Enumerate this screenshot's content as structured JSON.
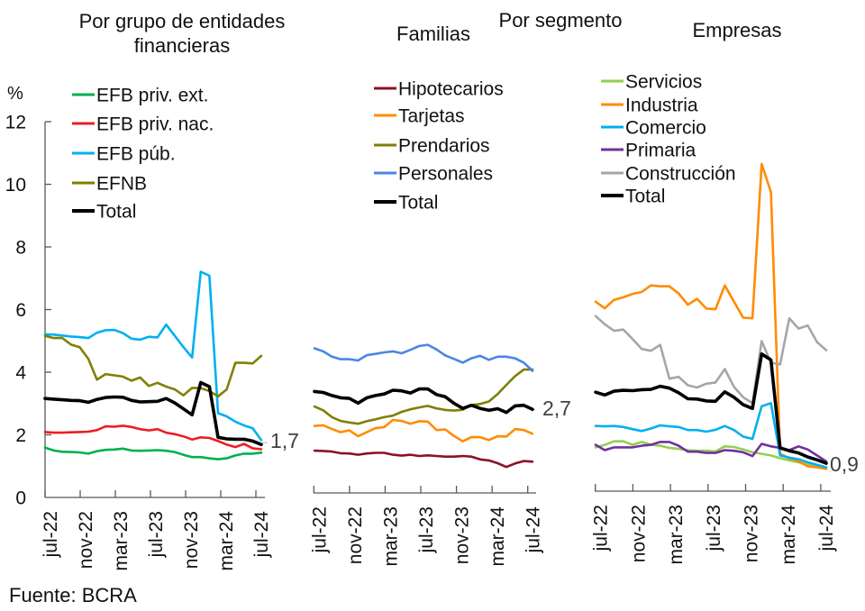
{
  "header": {
    "segment_title": "Por segmento"
  },
  "source": "Fuente: BCRA",
  "chart_data": [
    {
      "type": "line",
      "title": "Por grupo de entidades financieras",
      "title_lines": [
        "Por grupo de entidades",
        "financieras"
      ],
      "xlabel": "",
      "ylabel": "%",
      "ylim": [
        0,
        12
      ],
      "y_ticks": [
        "0",
        "2",
        "4",
        "6",
        "8",
        "10",
        "12"
      ],
      "grid": false,
      "legend_position": "top-left",
      "x_tick_labels": [
        "jul-22",
        "nov-22",
        "mar-23",
        "jul-23",
        "nov-23",
        "mar-24",
        "jul-24"
      ],
      "end_label": "1,7",
      "series": [
        {
          "name": "EFB priv. ext.",
          "color": "#00b050",
          "values": [
            1.59,
            1.5,
            1.46,
            1.45,
            1.44,
            1.4,
            1.48,
            1.52,
            1.53,
            1.56,
            1.5,
            1.49,
            1.5,
            1.51,
            1.49,
            1.45,
            1.36,
            1.29,
            1.29,
            1.25,
            1.22,
            1.25,
            1.34,
            1.4,
            1.4,
            1.43
          ]
        },
        {
          "name": "EFB priv. nac.",
          "color": "#ee1c25",
          "values": [
            2.09,
            2.07,
            2.07,
            2.08,
            2.09,
            2.1,
            2.15,
            2.27,
            2.26,
            2.29,
            2.25,
            2.18,
            2.14,
            2.18,
            2.07,
            2.02,
            1.95,
            1.85,
            1.92,
            1.9,
            1.8,
            1.69,
            1.61,
            1.71,
            1.57,
            1.54
          ]
        },
        {
          "name": "EFB púb.",
          "color": "#00b0f0",
          "values": [
            5.21,
            5.2,
            5.17,
            5.14,
            5.12,
            5.09,
            5.26,
            5.34,
            5.35,
            5.25,
            5.07,
            5.04,
            5.13,
            5.11,
            5.52,
            5.16,
            4.8,
            4.47,
            7.21,
            7.08,
            2.69,
            2.59,
            2.42,
            2.3,
            2.21,
            1.83
          ]
        },
        {
          "name": "EFNB",
          "color": "#808000",
          "values": [
            5.16,
            5.09,
            5.09,
            4.88,
            4.8,
            4.43,
            3.76,
            3.94,
            3.9,
            3.86,
            3.73,
            3.83,
            3.56,
            3.66,
            3.54,
            3.45,
            3.26,
            3.5,
            3.49,
            3.4,
            3.23,
            3.45,
            4.3,
            4.3,
            4.28,
            4.52
          ]
        },
        {
          "name": "Total",
          "color": "#000000",
          "values": [
            3.16,
            3.14,
            3.12,
            3.1,
            3.09,
            3.04,
            3.13,
            3.19,
            3.21,
            3.2,
            3.1,
            3.05,
            3.06,
            3.07,
            3.16,
            3.02,
            2.83,
            2.64,
            3.67,
            3.54,
            1.92,
            1.87,
            1.86,
            1.86,
            1.8,
            1.69
          ]
        }
      ]
    },
    {
      "type": "line",
      "title": "Familias",
      "xlabel": "",
      "ylabel": "%",
      "ylim": [
        0,
        12
      ],
      "grid": false,
      "legend_position": "top",
      "x_tick_labels": [
        "jul-22",
        "nov-22",
        "mar-23",
        "jul-23",
        "nov-23",
        "mar-24",
        "jul-24"
      ],
      "end_label": "2,7",
      "series": [
        {
          "name": "Hipotecarios",
          "color": "#8b1028",
          "values": [
            1.35,
            1.34,
            1.32,
            1.27,
            1.26,
            1.22,
            1.26,
            1.28,
            1.28,
            1.22,
            1.19,
            1.22,
            1.18,
            1.2,
            1.18,
            1.16,
            1.16,
            1.18,
            1.16,
            1.07,
            1.04,
            0.95,
            0.83,
            0.94,
            1.02,
            1.0
          ]
        },
        {
          "name": "Tarjetas",
          "color": "#ff8c00",
          "values": [
            2.14,
            2.16,
            2.04,
            1.94,
            2.0,
            1.81,
            1.94,
            2.07,
            2.1,
            2.33,
            2.3,
            2.21,
            2.29,
            2.28,
            2.01,
            2.03,
            1.82,
            1.65,
            1.78,
            1.78,
            1.69,
            1.81,
            1.8,
            2.04,
            2.01,
            1.89
          ]
        },
        {
          "name": "Prendarios",
          "color": "#808000",
          "values": [
            2.76,
            2.64,
            2.42,
            2.3,
            2.25,
            2.21,
            2.29,
            2.35,
            2.42,
            2.47,
            2.59,
            2.67,
            2.73,
            2.78,
            2.7,
            2.65,
            2.63,
            2.66,
            2.81,
            2.84,
            2.92,
            3.16,
            3.45,
            3.73,
            3.94,
            3.94
          ]
        },
        {
          "name": "Personales",
          "color": "#4a86e8",
          "values": [
            4.62,
            4.52,
            4.35,
            4.27,
            4.27,
            4.23,
            4.4,
            4.44,
            4.49,
            4.52,
            4.46,
            4.57,
            4.69,
            4.73,
            4.58,
            4.39,
            4.28,
            4.16,
            4.3,
            4.38,
            4.25,
            4.35,
            4.35,
            4.3,
            4.16,
            3.9
          ]
        },
        {
          "name": "Total",
          "color": "#000000",
          "values": [
            3.24,
            3.21,
            3.11,
            3.04,
            3.02,
            2.87,
            3.04,
            3.11,
            3.16,
            3.28,
            3.26,
            3.19,
            3.32,
            3.32,
            3.14,
            3.07,
            2.86,
            2.7,
            2.8,
            2.7,
            2.64,
            2.69,
            2.57,
            2.78,
            2.8,
            2.67
          ]
        }
      ]
    },
    {
      "type": "line",
      "title": "Empresas",
      "xlabel": "",
      "ylabel": "%",
      "ylim": [
        0,
        12
      ],
      "grid": false,
      "legend_position": "top",
      "x_tick_labels": [
        "jul-22",
        "nov-22",
        "mar-23",
        "jul-23",
        "nov-23",
        "mar-24",
        "jul-24"
      ],
      "end_label": "0,9",
      "series": [
        {
          "name": "Servicios",
          "color": "#92d050",
          "values": [
            1.4,
            1.48,
            1.59,
            1.59,
            1.48,
            1.57,
            1.48,
            1.45,
            1.38,
            1.35,
            1.31,
            1.29,
            1.29,
            1.27,
            1.43,
            1.41,
            1.33,
            1.24,
            1.19,
            1.14,
            1.05,
            0.98,
            0.92,
            0.86,
            0.79,
            0.73
          ]
        },
        {
          "name": "Industria",
          "color": "#ff8c00",
          "values": [
            6.05,
            5.84,
            6.11,
            6.19,
            6.3,
            6.36,
            6.57,
            6.54,
            6.54,
            6.31,
            5.95,
            6.14,
            5.83,
            5.81,
            6.57,
            6.05,
            5.54,
            5.52,
            10.45,
            9.55,
            1.19,
            1.05,
            0.95,
            0.79,
            0.76,
            0.71
          ]
        },
        {
          "name": "Comercio",
          "color": "#00b0f0",
          "values": [
            2.08,
            2.07,
            2.08,
            2.05,
            1.98,
            1.92,
            2.0,
            2.1,
            2.07,
            2.05,
            1.95,
            1.95,
            1.9,
            1.96,
            2.08,
            1.95,
            1.74,
            1.67,
            2.71,
            2.81,
            1.14,
            1.07,
            1.02,
            0.92,
            0.84,
            0.76
          ]
        },
        {
          "name": "Primaria",
          "color": "#7030a0",
          "values": [
            1.48,
            1.31,
            1.4,
            1.4,
            1.4,
            1.45,
            1.48,
            1.57,
            1.57,
            1.45,
            1.26,
            1.26,
            1.22,
            1.22,
            1.31,
            1.29,
            1.24,
            1.12,
            1.51,
            1.43,
            1.38,
            1.31,
            1.43,
            1.33,
            1.14,
            0.95
          ]
        },
        {
          "name": "Construcción",
          "color": "#a6a6a6",
          "values": [
            5.59,
            5.33,
            5.12,
            5.16,
            4.86,
            4.54,
            4.48,
            4.67,
            3.59,
            3.65,
            3.38,
            3.31,
            3.43,
            3.47,
            3.9,
            3.33,
            3.0,
            2.81,
            4.79,
            4.1,
            4.05,
            5.52,
            5.19,
            5.29,
            4.76,
            4.5
          ]
        },
        {
          "name": "Total",
          "color": "#000000",
          "values": [
            3.16,
            3.07,
            3.19,
            3.22,
            3.21,
            3.24,
            3.25,
            3.35,
            3.29,
            3.14,
            2.95,
            2.94,
            2.88,
            2.87,
            3.17,
            3.0,
            2.76,
            2.64,
            4.38,
            4.19,
            1.38,
            1.29,
            1.22,
            1.09,
            1.0,
            0.89
          ]
        }
      ]
    }
  ]
}
